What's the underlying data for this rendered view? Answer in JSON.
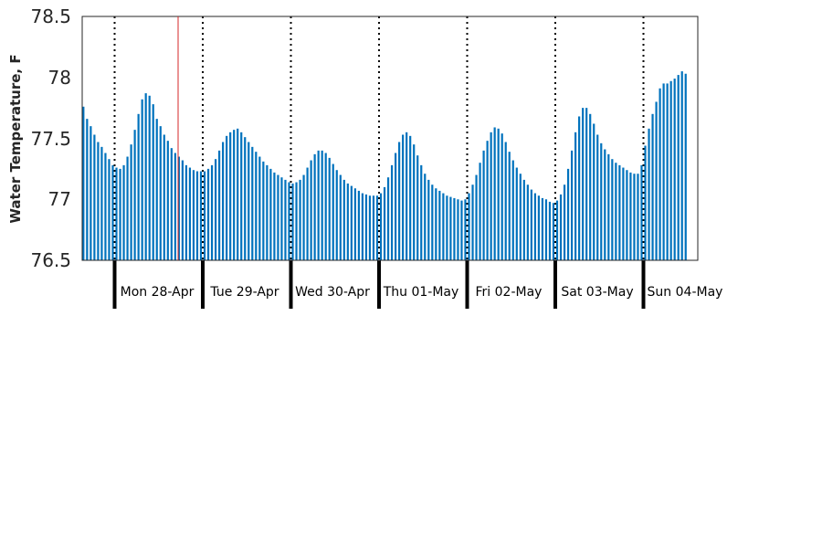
{
  "chart_data": {
    "type": "bar",
    "title": "",
    "xlabel": "",
    "ylabel": "Water Temperature, F",
    "ylim": [
      76.5,
      78.5
    ],
    "yticks": [
      "76.5",
      "77",
      "77.5",
      "78",
      "78.5"
    ],
    "day_labels": [
      "Mon 28-Apr",
      "Tue 29-Apr",
      "Wed 30-Apr",
      "Thu 01-May",
      "Fri 02-May",
      "Sat 03-May",
      "Sun 04-May"
    ],
    "bars_per_day": 24,
    "values": [
      77.76,
      77.66,
      77.6,
      77.53,
      77.47,
      77.43,
      77.38,
      77.33,
      77.28,
      77.26,
      77.25,
      77.28,
      77.35,
      77.45,
      77.57,
      77.7,
      77.82,
      77.87,
      77.85,
      77.78,
      77.66,
      77.6,
      77.53,
      77.48,
      77.42,
      77.38,
      77.35,
      77.32,
      77.28,
      77.26,
      77.24,
      77.23,
      77.23,
      77.23,
      77.25,
      77.28,
      77.33,
      77.4,
      77.47,
      77.52,
      77.55,
      77.57,
      77.58,
      77.55,
      77.51,
      77.47,
      77.43,
      77.39,
      77.35,
      77.31,
      77.28,
      77.25,
      77.22,
      77.2,
      77.18,
      77.16,
      77.14,
      77.13,
      77.14,
      77.16,
      77.2,
      77.26,
      77.32,
      77.37,
      77.4,
      77.4,
      77.38,
      77.34,
      77.29,
      77.24,
      77.2,
      77.16,
      77.13,
      77.11,
      77.09,
      77.07,
      77.05,
      77.04,
      77.03,
      77.03,
      77.03,
      77.05,
      77.1,
      77.18,
      77.28,
      77.38,
      77.47,
      77.53,
      77.55,
      77.52,
      77.45,
      77.36,
      77.28,
      77.21,
      77.16,
      77.12,
      77.09,
      77.07,
      77.05,
      77.03,
      77.02,
      77.01,
      77.0,
      76.99,
      77.0,
      77.05,
      77.12,
      77.2,
      77.3,
      77.4,
      77.48,
      77.55,
      77.59,
      77.58,
      77.54,
      77.47,
      77.39,
      77.32,
      77.26,
      77.21,
      77.16,
      77.12,
      77.08,
      77.05,
      77.03,
      77.01,
      77.0,
      76.98,
      76.97,
      76.99,
      77.04,
      77.12,
      77.25,
      77.4,
      77.55,
      77.68,
      77.75,
      77.75,
      77.7,
      77.62,
      77.53,
      77.46,
      77.41,
      77.37,
      77.33,
      77.3,
      77.28,
      77.26,
      77.24,
      77.22,
      77.21,
      77.21,
      77.28,
      77.44,
      77.58,
      77.7,
      77.8,
      77.91,
      77.95,
      77.95,
      77.97,
      77.99,
      78.02,
      78.05,
      78.03
    ]
  }
}
